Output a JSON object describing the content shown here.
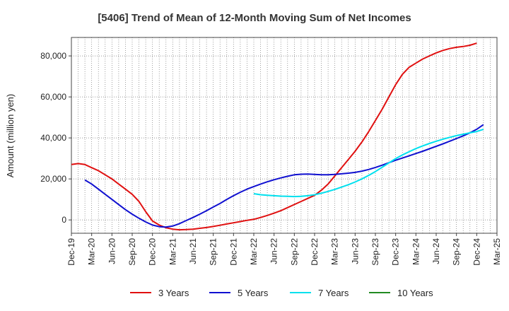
{
  "chart_data": {
    "type": "line",
    "title": "[5406]  Trend of Mean of 12-Month Moving Sum of Net Incomes",
    "xlabel": "",
    "ylabel": "Amount (million yen)",
    "ylim": [
      -6500,
      89000
    ],
    "yticks": [
      0,
      20000,
      40000,
      60000,
      80000
    ],
    "ytick_labels": [
      "0",
      "20,000",
      "40,000",
      "60,000",
      "80,000"
    ],
    "xticks": [
      "Dec-19",
      "Mar-20",
      "Jun-20",
      "Sep-20",
      "Dec-20",
      "Mar-21",
      "Jun-21",
      "Sep-21",
      "Dec-21",
      "Mar-22",
      "Jun-22",
      "Sep-22",
      "Dec-22",
      "Mar-23",
      "Jun-23",
      "Sep-23",
      "Dec-23",
      "Mar-24",
      "Jun-24",
      "Sep-24",
      "Dec-24",
      "Mar-25"
    ],
    "grid": true,
    "legend_position": "bottom",
    "series": [
      {
        "name": "3 Years",
        "color": "#e01010",
        "points": [
          [
            "Dec-19",
            27000
          ],
          [
            "Jan-20",
            27500
          ],
          [
            "Feb-20",
            27000
          ],
          [
            "Mar-20",
            25500
          ],
          [
            "Apr-20",
            24000
          ],
          [
            "May-20",
            22000
          ],
          [
            "Jun-20",
            20000
          ],
          [
            "Jul-20",
            17500
          ],
          [
            "Aug-20",
            15000
          ],
          [
            "Sep-20",
            12500
          ],
          [
            "Oct-20",
            9000
          ],
          [
            "Nov-20",
            4000
          ],
          [
            "Dec-20",
            -500
          ],
          [
            "Jan-21",
            -2500
          ],
          [
            "Feb-21",
            -3800
          ],
          [
            "Mar-21",
            -4500
          ],
          [
            "Apr-21",
            -4800
          ],
          [
            "May-21",
            -4700
          ],
          [
            "Jun-21",
            -4500
          ],
          [
            "Jul-21",
            -4100
          ],
          [
            "Aug-21",
            -3700
          ],
          [
            "Sep-21",
            -3200
          ],
          [
            "Oct-21",
            -2600
          ],
          [
            "Nov-21",
            -2000
          ],
          [
            "Dec-21",
            -1400
          ],
          [
            "Jan-22",
            -800
          ],
          [
            "Feb-22",
            -200
          ],
          [
            "Mar-22",
            300
          ],
          [
            "Apr-22",
            1200
          ],
          [
            "May-22",
            2200
          ],
          [
            "Jun-22",
            3300
          ],
          [
            "Jul-22",
            4500
          ],
          [
            "Aug-22",
            6000
          ],
          [
            "Sep-22",
            7500
          ],
          [
            "Oct-22",
            9000
          ],
          [
            "Nov-22",
            10500
          ],
          [
            "Dec-22",
            12000
          ],
          [
            "Jan-23",
            14500
          ],
          [
            "Feb-23",
            17500
          ],
          [
            "Mar-23",
            21500
          ],
          [
            "Apr-23",
            25500
          ],
          [
            "May-23",
            29500
          ],
          [
            "Jun-23",
            33500
          ],
          [
            "Jul-23",
            38000
          ],
          [
            "Aug-23",
            43000
          ],
          [
            "Sep-23",
            48500
          ],
          [
            "Oct-23",
            54000
          ],
          [
            "Nov-23",
            60000
          ],
          [
            "Dec-23",
            66000
          ],
          [
            "Jan-24",
            71000
          ],
          [
            "Feb-24",
            74500
          ],
          [
            "Mar-24",
            76500
          ],
          [
            "Apr-24",
            78500
          ],
          [
            "May-24",
            80000
          ],
          [
            "Jun-24",
            81500
          ],
          [
            "Jul-24",
            82700
          ],
          [
            "Aug-24",
            83600
          ],
          [
            "Sep-24",
            84200
          ],
          [
            "Oct-24",
            84600
          ],
          [
            "Nov-24",
            85200
          ],
          [
            "Dec-24",
            86200
          ]
        ]
      },
      {
        "name": "5 Years",
        "color": "#1010d0",
        "points": [
          [
            "Feb-20",
            19500
          ],
          [
            "Mar-20",
            17500
          ],
          [
            "Apr-20",
            15000
          ],
          [
            "May-20",
            12500
          ],
          [
            "Jun-20",
            10000
          ],
          [
            "Jul-20",
            7500
          ],
          [
            "Aug-20",
            5000
          ],
          [
            "Sep-20",
            2800
          ],
          [
            "Oct-20",
            800
          ],
          [
            "Nov-20",
            -1000
          ],
          [
            "Dec-20",
            -2500
          ],
          [
            "Jan-21",
            -3300
          ],
          [
            "Feb-21",
            -3500
          ],
          [
            "Mar-21",
            -3000
          ],
          [
            "Apr-21",
            -1800
          ],
          [
            "May-21",
            -300
          ],
          [
            "Jun-21",
            1200
          ],
          [
            "Jul-21",
            2800
          ],
          [
            "Aug-21",
            4500
          ],
          [
            "Sep-21",
            6300
          ],
          [
            "Oct-21",
            8000
          ],
          [
            "Nov-21",
            10000
          ],
          [
            "Dec-21",
            11800
          ],
          [
            "Jan-22",
            13500
          ],
          [
            "Feb-22",
            15000
          ],
          [
            "Mar-22",
            16300
          ],
          [
            "Apr-22",
            17500
          ],
          [
            "May-22",
            18600
          ],
          [
            "Jun-22",
            19600
          ],
          [
            "Jul-22",
            20500
          ],
          [
            "Aug-22",
            21300
          ],
          [
            "Sep-22",
            22000
          ],
          [
            "Oct-22",
            22300
          ],
          [
            "Nov-22",
            22400
          ],
          [
            "Dec-22",
            22200
          ],
          [
            "Jan-23",
            22000
          ],
          [
            "Feb-23",
            22000
          ],
          [
            "Mar-23",
            22200
          ],
          [
            "Apr-23",
            22500
          ],
          [
            "May-23",
            22800
          ],
          [
            "Jun-23",
            23200
          ],
          [
            "Jul-23",
            23800
          ],
          [
            "Aug-23",
            24600
          ],
          [
            "Sep-23",
            25600
          ],
          [
            "Oct-23",
            26700
          ],
          [
            "Nov-23",
            27900
          ],
          [
            "Dec-23",
            29100
          ],
          [
            "Jan-24",
            30200
          ],
          [
            "Feb-24",
            31300
          ],
          [
            "Mar-24",
            32400
          ],
          [
            "Apr-24",
            33500
          ],
          [
            "May-24",
            34700
          ],
          [
            "Jun-24",
            35900
          ],
          [
            "Jul-24",
            37100
          ],
          [
            "Aug-24",
            38400
          ],
          [
            "Sep-24",
            39700
          ],
          [
            "Oct-24",
            41000
          ],
          [
            "Nov-24",
            42500
          ],
          [
            "Dec-24",
            44200
          ],
          [
            "Jan-25",
            46500
          ]
        ]
      },
      {
        "name": "7 Years",
        "color": "#00e0ee",
        "points": [
          [
            "Mar-22",
            12800
          ],
          [
            "Apr-22",
            12300
          ],
          [
            "May-22",
            12000
          ],
          [
            "Jun-22",
            11800
          ],
          [
            "Jul-22",
            11600
          ],
          [
            "Aug-22",
            11500
          ],
          [
            "Sep-22",
            11400
          ],
          [
            "Oct-22",
            11500
          ],
          [
            "Nov-22",
            11800
          ],
          [
            "Dec-22",
            12300
          ],
          [
            "Jan-23",
            13000
          ],
          [
            "Feb-23",
            13900
          ],
          [
            "Mar-23",
            14900
          ],
          [
            "Apr-23",
            16000
          ],
          [
            "May-23",
            17200
          ],
          [
            "Jun-23",
            18500
          ],
          [
            "Jul-23",
            20000
          ],
          [
            "Aug-23",
            21700
          ],
          [
            "Sep-23",
            23600
          ],
          [
            "Oct-23",
            25700
          ],
          [
            "Nov-23",
            27800
          ],
          [
            "Dec-23",
            29900
          ],
          [
            "Jan-24",
            31700
          ],
          [
            "Feb-24",
            33300
          ],
          [
            "Mar-24",
            34800
          ],
          [
            "Apr-24",
            36100
          ],
          [
            "May-24",
            37300
          ],
          [
            "Jun-24",
            38400
          ],
          [
            "Jul-24",
            39400
          ],
          [
            "Aug-24",
            40300
          ],
          [
            "Sep-24",
            41100
          ],
          [
            "Oct-24",
            41800
          ],
          [
            "Nov-24",
            42500
          ],
          [
            "Dec-24",
            43100
          ],
          [
            "Jan-25",
            44200
          ]
        ]
      },
      {
        "name": "10 Years",
        "color": "#228b22",
        "points": []
      }
    ]
  }
}
